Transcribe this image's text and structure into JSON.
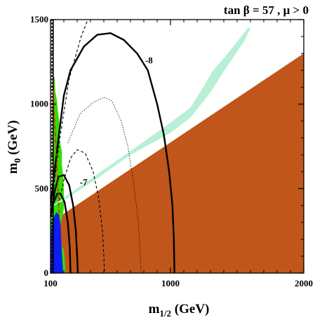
{
  "chart_data": {
    "type": "contour",
    "title": "tan β = 57 ,  μ > 0",
    "xlabel": "m1/2 (GeV)",
    "ylabel": "m0 (GeV)",
    "xlim": [
      100,
      2000
    ],
    "ylim": [
      0,
      1500
    ],
    "x_ticks": [
      100,
      1000,
      2000
    ],
    "y_ticks": [
      0,
      500,
      1000,
      1500
    ],
    "grid": false,
    "colors": {
      "excluded_brown": "#c0561a",
      "cosmo_green": "#33dd00",
      "stau_cyan": "#b7f0d4",
      "excluded_blue": "#0b1ff0",
      "higgs_red": "#ee1111",
      "contour": "#000000"
    },
    "regions": [
      {
        "name": "excluded_brown",
        "polygon": [
          [
            130,
            315
          ],
          [
            2000,
            1300
          ],
          [
            2000,
            0
          ],
          [
            100,
            0
          ],
          [
            100,
            170
          ],
          [
            120,
            170
          ]
        ]
      },
      {
        "name": "cosmo_green",
        "polygon": [
          [
            120,
            1160
          ],
          [
            130,
            1160
          ],
          [
            135,
            1080
          ],
          [
            150,
            1010
          ],
          [
            155,
            960
          ],
          [
            165,
            900
          ],
          [
            170,
            780
          ],
          [
            185,
            720
          ],
          [
            185,
            640
          ],
          [
            195,
            580
          ],
          [
            200,
            500
          ],
          [
            200,
            380
          ],
          [
            185,
            320
          ],
          [
            150,
            240
          ],
          [
            135,
            200
          ],
          [
            200,
            140
          ],
          [
            215,
            0
          ],
          [
            100,
            0
          ],
          [
            100,
            300
          ],
          [
            110,
            320
          ],
          [
            105,
            380
          ],
          [
            115,
            400
          ],
          [
            115,
            520
          ],
          [
            120,
            560
          ],
          [
            112,
            700
          ],
          [
            125,
            800
          ],
          [
            120,
            900
          ],
          [
            110,
            960
          ],
          [
            120,
            1010
          ]
        ]
      },
      {
        "name": "stau_cyan",
        "polygon": [
          [
            130,
            400
          ],
          [
            200,
            430
          ],
          [
            450,
            560
          ],
          [
            700,
            700
          ],
          [
            1000,
            830
          ],
          [
            1150,
            920
          ],
          [
            1300,
            1070
          ],
          [
            1430,
            1230
          ],
          [
            1560,
            1380
          ],
          [
            1600,
            1450
          ],
          [
            1580,
            1450
          ],
          [
            1420,
            1290
          ],
          [
            1320,
            1200
          ],
          [
            1230,
            1080
          ],
          [
            1150,
            980
          ],
          [
            1000,
            890
          ],
          [
            750,
            750
          ],
          [
            460,
            590
          ],
          [
            260,
            480
          ],
          [
            150,
            420
          ],
          [
            110,
            400
          ],
          [
            100,
            395
          ]
        ]
      },
      {
        "name": "excluded_blue",
        "polygon": [
          [
            100,
            120
          ],
          [
            105,
            250
          ],
          [
            115,
            300
          ],
          [
            130,
            340
          ],
          [
            145,
            360
          ],
          [
            165,
            345
          ],
          [
            175,
            280
          ],
          [
            180,
            200
          ],
          [
            185,
            120
          ],
          [
            195,
            0
          ],
          [
            100,
            0
          ]
        ]
      }
    ],
    "contours": [
      {
        "label": "-8",
        "style": "solid-bold",
        "points": [
          [
            100,
            400
          ],
          [
            130,
            600
          ],
          [
            160,
            800
          ],
          [
            200,
            1050
          ],
          [
            250,
            1200
          ],
          [
            350,
            1340
          ],
          [
            450,
            1410
          ],
          [
            550,
            1420
          ],
          [
            650,
            1380
          ],
          [
            750,
            1300
          ],
          [
            830,
            1200
          ],
          [
            900,
            1000
          ],
          [
            950,
            820
          ],
          [
            990,
            600
          ],
          [
            1015,
            400
          ],
          [
            1025,
            200
          ],
          [
            1030,
            0
          ]
        ]
      },
      {
        "label": "-7",
        "style": "solid-bold",
        "points": [
          [
            100,
            330
          ],
          [
            130,
            480
          ],
          [
            160,
            570
          ],
          [
            200,
            580
          ],
          [
            240,
            520
          ],
          [
            270,
            400
          ],
          [
            290,
            250
          ],
          [
            300,
            100
          ],
          [
            305,
            0
          ]
        ]
      },
      {
        "label": "",
        "style": "solid-bold",
        "points": [
          [
            100,
            340
          ],
          [
            120,
            410
          ],
          [
            150,
            470
          ],
          [
            175,
            470
          ],
          [
            205,
            420
          ],
          [
            230,
            300
          ],
          [
            245,
            150
          ],
          [
            250,
            0
          ]
        ]
      },
      {
        "label": "",
        "style": "dashed",
        "points": [
          [
            160,
            400
          ],
          [
            200,
            550
          ],
          [
            250,
            680
          ],
          [
            300,
            730
          ],
          [
            360,
            710
          ],
          [
            420,
            600
          ],
          [
            460,
            450
          ],
          [
            490,
            250
          ],
          [
            500,
            100
          ],
          [
            505,
            0
          ]
        ]
      },
      {
        "label": "",
        "style": "dotted-thin",
        "points": [
          [
            230,
            770
          ],
          [
            320,
            940
          ],
          [
            420,
            1010
          ],
          [
            500,
            1040
          ],
          [
            560,
            1020
          ],
          [
            630,
            900
          ],
          [
            680,
            750
          ],
          [
            720,
            550
          ],
          [
            760,
            300
          ],
          [
            780,
            0
          ]
        ]
      },
      {
        "label": "",
        "style": "dashed",
        "points": [
          [
            120,
            480
          ],
          [
            170,
            800
          ],
          [
            240,
            1150
          ],
          [
            330,
            1400
          ],
          [
            380,
            1500
          ]
        ]
      },
      {
        "label": "",
        "style": "dashed-vertical",
        "points": [
          [
            110,
            0
          ],
          [
            110,
            1500
          ]
        ]
      },
      {
        "label": "",
        "style": "solid-vertical",
        "points": [
          [
            120,
            0
          ],
          [
            120,
            1500
          ]
        ]
      },
      {
        "label": "",
        "style": "dash-dot-red",
        "points": [
          [
            120,
            1080
          ],
          [
            130,
            900
          ],
          [
            145,
            700
          ],
          [
            155,
            500
          ],
          [
            165,
            330
          ]
        ]
      }
    ],
    "contour_labels": [
      {
        "text": "-8",
        "x": 810,
        "y": 1240
      },
      {
        "text": "-7",
        "x": 320,
        "y": 520
      }
    ]
  }
}
